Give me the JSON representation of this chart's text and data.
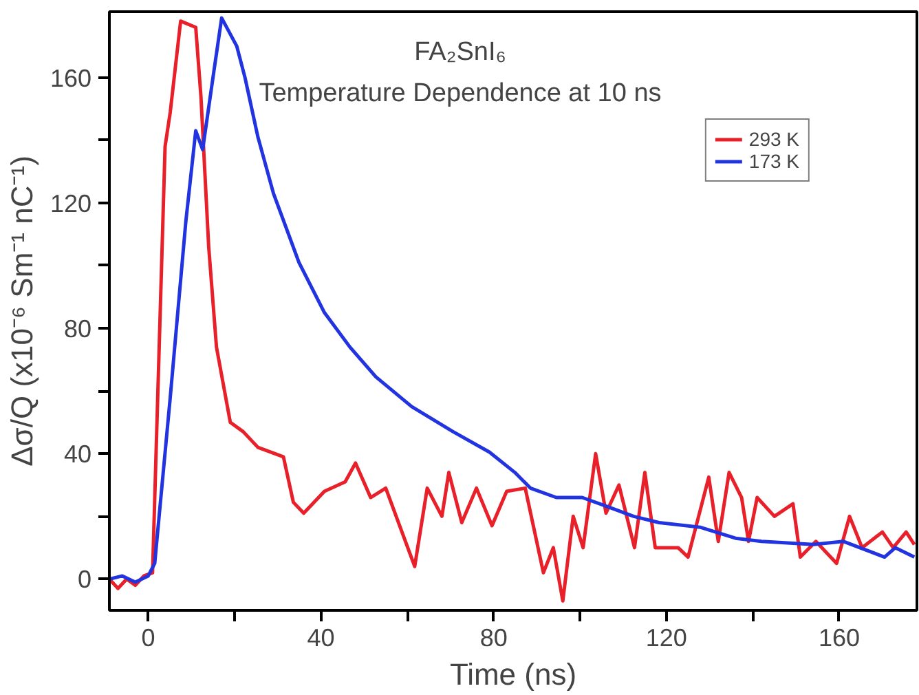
{
  "chart_data": {
    "type": "line",
    "title": "FA₂SnI₆",
    "subtitle": "Temperature Dependence at 10 ns",
    "xlabel": "Time (ns)",
    "ylabel": "Δσ/Q (x10⁻⁶ Sm⁻¹ nC⁻¹)",
    "xlim": [
      -9,
      178
    ],
    "ylim": [
      -10,
      181
    ],
    "xticks": [
      0,
      {
        "value": 20,
        "label": null
      },
      40,
      {
        "value": 60,
        "label": null
      },
      80,
      {
        "value": 100,
        "label": null
      },
      120,
      {
        "value": 140,
        "label": null
      },
      160
    ],
    "yticks": [
      0,
      {
        "value": 20,
        "label": null
      },
      40,
      {
        "value": 60,
        "label": null
      },
      80,
      {
        "value": 100,
        "label": null
      },
      120,
      {
        "value": 140,
        "label": null
      },
      160
    ],
    "grid": false,
    "legend": "top right",
    "line_style": "solid",
    "marker": "none",
    "series": [
      {
        "name": "293 K",
        "color": "#e8202a",
        "x": [
          -9,
          -7,
          -5,
          -3,
          -1,
          1,
          3.9,
          5.1,
          7.5,
          11,
          12.2,
          14,
          15.8,
          19,
          22,
          25.4,
          31.3,
          33.6,
          36,
          40.8,
          45.6,
          48,
          51.5,
          55,
          61.7,
          64.6,
          68,
          69.6,
          72.6,
          76,
          79.6,
          83,
          87.3,
          91.5,
          93.8,
          96,
          98.4,
          100.7,
          103.6,
          106,
          109,
          112.6,
          115,
          117.4,
          122.7,
          125,
          129.8,
          132,
          134.5,
          137.4,
          139,
          141,
          145,
          149.3,
          151,
          154.6,
          159.4,
          162.4,
          165.3,
          170,
          172.5,
          175.5,
          177.4
        ],
        "values": [
          0,
          -3,
          0,
          -2,
          1,
          2,
          138,
          149,
          178,
          176,
          154,
          106,
          74,
          50,
          47,
          42,
          39,
          24.5,
          21,
          28,
          31,
          37,
          26,
          29,
          4,
          29,
          20,
          34,
          18,
          29,
          17,
          28,
          29,
          2,
          10,
          -7,
          20,
          10,
          40,
          21,
          30,
          10,
          34,
          10,
          10,
          7,
          32.5,
          12,
          34,
          26,
          12,
          26,
          20,
          24,
          7,
          12,
          5,
          20,
          10,
          15,
          10,
          15,
          11
        ]
      },
      {
        "name": "173 K",
        "color": "#2233e0",
        "x": [
          -9,
          -6,
          -3,
          0,
          1.5,
          5.1,
          8.7,
          11,
          12.6,
          15.2,
          17,
          20.5,
          22.4,
          25.4,
          29,
          34.9,
          40.8,
          46.7,
          52.7,
          61,
          70.6,
          79,
          84.9,
          88.5,
          94.5,
          100.5,
          106.5,
          112.4,
          118.3,
          127.9,
          136,
          142,
          154,
          161,
          170.5,
          173,
          177.4
        ],
        "values": [
          0,
          1,
          -1,
          1,
          5,
          58,
          114,
          143,
          137,
          162,
          179,
          170,
          160,
          141,
          123,
          101,
          85,
          74,
          64.5,
          55,
          47,
          40.5,
          34,
          29,
          26,
          26,
          23,
          20,
          18,
          16.5,
          13,
          12,
          11,
          12,
          7,
          10,
          7
        ]
      }
    ]
  }
}
